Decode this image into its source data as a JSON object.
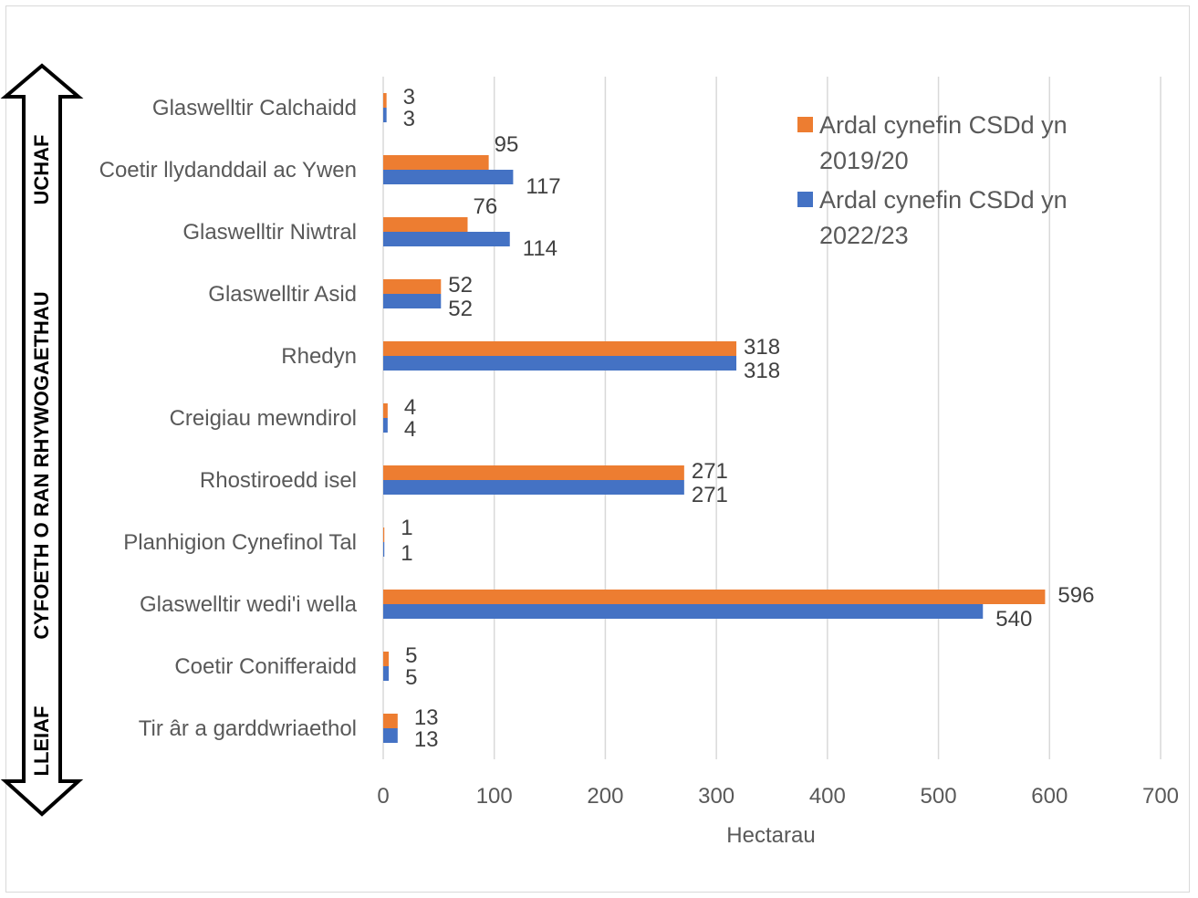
{
  "chart_data": {
    "type": "bar",
    "orientation": "horizontal",
    "categories": [
      "Glaswelltir Calchaidd",
      "Coetir llydanddail ac Ywen",
      "Glaswelltir Niwtral",
      "Glaswelltir Asid",
      "Rhedyn",
      "Creigiau mewndirol",
      "Rhostiroedd isel",
      "Planhigion Cynefinol Tal",
      "Glaswelltir wedi'i wella",
      "Coetir Conifferaidd",
      "Tir âr a garddwriaethol"
    ],
    "series": [
      {
        "name": "Ardal cynefin CSDd yn 2019/20",
        "color": "#ED7D31",
        "values": [
          3,
          95,
          76,
          52,
          318,
          4,
          271,
          1,
          596,
          5,
          13
        ]
      },
      {
        "name": "Ardal cynefin CSDd yn 2022/23",
        "color": "#4472C4",
        "values": [
          3,
          117,
          114,
          52,
          318,
          4,
          271,
          1,
          540,
          5,
          13
        ]
      }
    ],
    "xlabel": "Hectarau",
    "xlim": [
      0,
      700
    ],
    "xticks": [
      0,
      100,
      200,
      300,
      400,
      500,
      600,
      700
    ],
    "grid": true,
    "legend_position": "top-right",
    "side_arrow": {
      "top_label": "UCHAF",
      "middle_label": "CYFOETH O RAN RHYWOGAETHAU",
      "bottom_label": "LLEIAF"
    }
  }
}
